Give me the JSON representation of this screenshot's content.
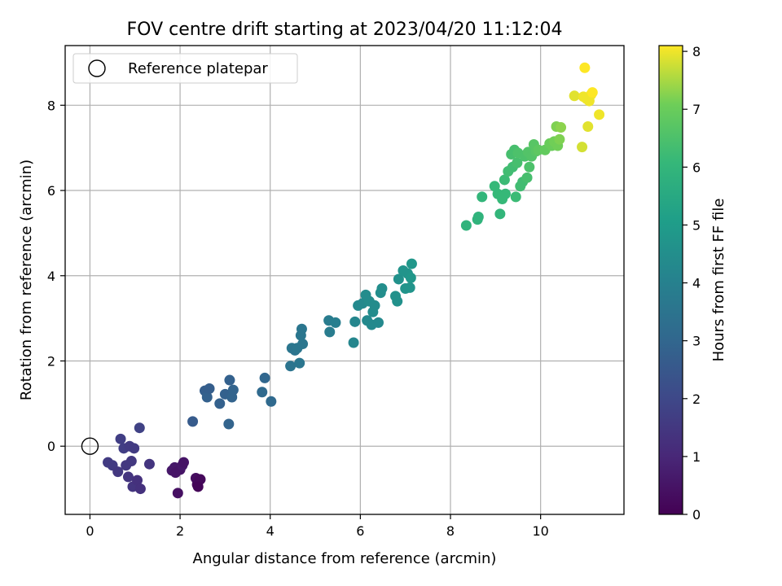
{
  "chart_data": {
    "type": "scatter",
    "title": "FOV centre drift starting at 2023/04/20 11:12:04",
    "xlabel": "Angular distance from reference (arcmin)",
    "ylabel": "Rotation from reference (arcmin)",
    "xlim": [
      -0.55,
      11.85
    ],
    "ylim": [
      -1.6,
      9.4
    ],
    "xticks": [
      0,
      2,
      4,
      6,
      8,
      10
    ],
    "yticks": [
      0,
      2,
      4,
      6,
      8
    ],
    "grid": true,
    "legend": {
      "position": "top-left",
      "entries": [
        {
          "label": "Reference platepar",
          "marker": "open-circle"
        }
      ]
    },
    "reference_point": {
      "x": 0,
      "y": 0
    },
    "colorbar": {
      "label": "Hours from first FF file",
      "colormap": "viridis",
      "range": [
        0,
        8.1
      ],
      "ticks": [
        0,
        1,
        2,
        3,
        4,
        5,
        6,
        7,
        8
      ]
    },
    "points": [
      {
        "x": 0.4,
        "y": -0.38,
        "c": 1.6
      },
      {
        "x": 0.5,
        "y": -0.45,
        "c": 1.6
      },
      {
        "x": 0.62,
        "y": -0.6,
        "c": 1.5
      },
      {
        "x": 0.68,
        "y": 0.17,
        "c": 1.7
      },
      {
        "x": 0.75,
        "y": -0.05,
        "c": 1.7
      },
      {
        "x": 0.8,
        "y": -0.45,
        "c": 1.5
      },
      {
        "x": 0.85,
        "y": -0.72,
        "c": 1.4
      },
      {
        "x": 0.88,
        "y": 0.0,
        "c": 1.6
      },
      {
        "x": 0.92,
        "y": -0.35,
        "c": 1.5
      },
      {
        "x": 0.95,
        "y": -0.95,
        "c": 1.4
      },
      {
        "x": 0.98,
        "y": -0.05,
        "c": 1.6
      },
      {
        "x": 1.05,
        "y": -0.8,
        "c": 1.3
      },
      {
        "x": 1.1,
        "y": 0.43,
        "c": 1.8
      },
      {
        "x": 1.12,
        "y": -1.0,
        "c": 1.3
      },
      {
        "x": 1.32,
        "y": -0.42,
        "c": 1.4
      },
      {
        "x": 1.82,
        "y": -0.57,
        "c": 0.6
      },
      {
        "x": 1.88,
        "y": -0.5,
        "c": 0.6
      },
      {
        "x": 1.9,
        "y": -0.62,
        "c": 0.5
      },
      {
        "x": 1.95,
        "y": -1.1,
        "c": 0.4
      },
      {
        "x": 2.0,
        "y": -0.55,
        "c": 0.5
      },
      {
        "x": 2.05,
        "y": -0.45,
        "c": 0.6
      },
      {
        "x": 2.08,
        "y": -0.38,
        "c": 0.5
      },
      {
        "x": 2.35,
        "y": -0.75,
        "c": 0.3
      },
      {
        "x": 2.38,
        "y": -0.9,
        "c": 0.2
      },
      {
        "x": 2.42,
        "y": -0.8,
        "c": 0.2
      },
      {
        "x": 2.45,
        "y": -0.78,
        "c": 0.2
      },
      {
        "x": 2.4,
        "y": -0.95,
        "c": 0.1
      },
      {
        "x": 2.28,
        "y": 0.58,
        "c": 2.6
      },
      {
        "x": 2.55,
        "y": 1.3,
        "c": 2.7
      },
      {
        "x": 2.6,
        "y": 1.15,
        "c": 2.8
      },
      {
        "x": 2.65,
        "y": 1.35,
        "c": 2.7
      },
      {
        "x": 2.88,
        "y": 1.0,
        "c": 2.8
      },
      {
        "x": 3.0,
        "y": 1.22,
        "c": 2.8
      },
      {
        "x": 3.08,
        "y": 0.52,
        "c": 2.9
      },
      {
        "x": 3.1,
        "y": 1.55,
        "c": 2.8
      },
      {
        "x": 3.15,
        "y": 1.15,
        "c": 2.9
      },
      {
        "x": 3.18,
        "y": 1.32,
        "c": 2.9
      },
      {
        "x": 3.82,
        "y": 1.27,
        "c": 3.1
      },
      {
        "x": 3.88,
        "y": 1.6,
        "c": 3.0
      },
      {
        "x": 4.02,
        "y": 1.05,
        "c": 3.1
      },
      {
        "x": 4.45,
        "y": 1.88,
        "c": 3.5
      },
      {
        "x": 4.48,
        "y": 2.3,
        "c": 3.6
      },
      {
        "x": 4.55,
        "y": 2.25,
        "c": 3.5
      },
      {
        "x": 4.6,
        "y": 2.3,
        "c": 3.6
      },
      {
        "x": 4.65,
        "y": 1.95,
        "c": 3.6
      },
      {
        "x": 4.68,
        "y": 2.6,
        "c": 3.6
      },
      {
        "x": 4.7,
        "y": 2.75,
        "c": 3.6
      },
      {
        "x": 4.72,
        "y": 2.4,
        "c": 3.6
      },
      {
        "x": 5.3,
        "y": 2.95,
        "c": 3.8
      },
      {
        "x": 5.32,
        "y": 2.68,
        "c": 3.8
      },
      {
        "x": 5.45,
        "y": 2.9,
        "c": 3.9
      },
      {
        "x": 5.85,
        "y": 2.43,
        "c": 4.2
      },
      {
        "x": 5.88,
        "y": 2.92,
        "c": 4.2
      },
      {
        "x": 5.95,
        "y": 3.3,
        "c": 4.3
      },
      {
        "x": 6.05,
        "y": 3.35,
        "c": 4.3
      },
      {
        "x": 6.12,
        "y": 3.55,
        "c": 4.4
      },
      {
        "x": 6.15,
        "y": 2.95,
        "c": 4.3
      },
      {
        "x": 6.2,
        "y": 3.4,
        "c": 4.4
      },
      {
        "x": 6.25,
        "y": 2.85,
        "c": 4.3
      },
      {
        "x": 6.28,
        "y": 3.15,
        "c": 4.4
      },
      {
        "x": 6.32,
        "y": 3.3,
        "c": 4.4
      },
      {
        "x": 6.4,
        "y": 2.9,
        "c": 4.3
      },
      {
        "x": 6.45,
        "y": 3.6,
        "c": 4.5
      },
      {
        "x": 6.48,
        "y": 3.7,
        "c": 4.5
      },
      {
        "x": 6.78,
        "y": 3.52,
        "c": 4.6
      },
      {
        "x": 6.82,
        "y": 3.4,
        "c": 4.6
      },
      {
        "x": 6.85,
        "y": 3.92,
        "c": 4.6
      },
      {
        "x": 6.95,
        "y": 4.12,
        "c": 4.7
      },
      {
        "x": 7.0,
        "y": 3.7,
        "c": 4.7
      },
      {
        "x": 7.05,
        "y": 4.05,
        "c": 4.7
      },
      {
        "x": 7.1,
        "y": 3.72,
        "c": 4.7
      },
      {
        "x": 7.12,
        "y": 3.95,
        "c": 4.8
      },
      {
        "x": 7.14,
        "y": 4.28,
        "c": 4.8
      },
      {
        "x": 8.35,
        "y": 5.18,
        "c": 5.9
      },
      {
        "x": 8.6,
        "y": 5.32,
        "c": 5.9
      },
      {
        "x": 8.62,
        "y": 5.38,
        "c": 5.9
      },
      {
        "x": 8.7,
        "y": 5.85,
        "c": 6.0
      },
      {
        "x": 8.98,
        "y": 6.1,
        "c": 6.1
      },
      {
        "x": 9.05,
        "y": 5.92,
        "c": 6.1
      },
      {
        "x": 9.1,
        "y": 5.45,
        "c": 6.0
      },
      {
        "x": 9.15,
        "y": 5.8,
        "c": 6.1
      },
      {
        "x": 9.2,
        "y": 6.25,
        "c": 6.2
      },
      {
        "x": 9.22,
        "y": 5.92,
        "c": 6.1
      },
      {
        "x": 9.28,
        "y": 6.45,
        "c": 6.3
      },
      {
        "x": 9.35,
        "y": 6.85,
        "c": 6.4
      },
      {
        "x": 9.38,
        "y": 6.55,
        "c": 6.3
      },
      {
        "x": 9.42,
        "y": 6.95,
        "c": 6.4
      },
      {
        "x": 9.45,
        "y": 5.85,
        "c": 6.2
      },
      {
        "x": 9.48,
        "y": 6.65,
        "c": 6.4
      },
      {
        "x": 9.5,
        "y": 6.88,
        "c": 6.5
      },
      {
        "x": 9.55,
        "y": 6.1,
        "c": 6.3
      },
      {
        "x": 9.6,
        "y": 6.2,
        "c": 6.3
      },
      {
        "x": 9.65,
        "y": 6.8,
        "c": 6.5
      },
      {
        "x": 9.7,
        "y": 6.3,
        "c": 6.4
      },
      {
        "x": 9.72,
        "y": 6.9,
        "c": 6.6
      },
      {
        "x": 9.75,
        "y": 6.55,
        "c": 6.5
      },
      {
        "x": 9.8,
        "y": 6.8,
        "c": 6.6
      },
      {
        "x": 9.85,
        "y": 7.08,
        "c": 6.7
      },
      {
        "x": 9.9,
        "y": 6.92,
        "c": 6.7
      },
      {
        "x": 9.95,
        "y": 6.95,
        "c": 6.8
      },
      {
        "x": 10.1,
        "y": 6.95,
        "c": 6.9
      },
      {
        "x": 10.2,
        "y": 7.1,
        "c": 7.0
      },
      {
        "x": 10.25,
        "y": 7.05,
        "c": 7.0
      },
      {
        "x": 10.3,
        "y": 7.15,
        "c": 7.1
      },
      {
        "x": 10.35,
        "y": 7.5,
        "c": 7.2
      },
      {
        "x": 10.38,
        "y": 7.05,
        "c": 7.1
      },
      {
        "x": 10.42,
        "y": 7.2,
        "c": 7.2
      },
      {
        "x": 10.45,
        "y": 7.48,
        "c": 7.3
      },
      {
        "x": 10.75,
        "y": 8.22,
        "c": 7.9
      },
      {
        "x": 10.92,
        "y": 7.02,
        "c": 7.8
      },
      {
        "x": 10.95,
        "y": 8.2,
        "c": 8.0
      },
      {
        "x": 10.98,
        "y": 8.88,
        "c": 8.1
      },
      {
        "x": 11.02,
        "y": 8.15,
        "c": 8.0
      },
      {
        "x": 11.05,
        "y": 7.5,
        "c": 7.9
      },
      {
        "x": 11.08,
        "y": 8.1,
        "c": 8.0
      },
      {
        "x": 11.12,
        "y": 8.25,
        "c": 8.0
      },
      {
        "x": 11.15,
        "y": 8.3,
        "c": 8.1
      },
      {
        "x": 11.3,
        "y": 7.78,
        "c": 8.0
      }
    ]
  }
}
